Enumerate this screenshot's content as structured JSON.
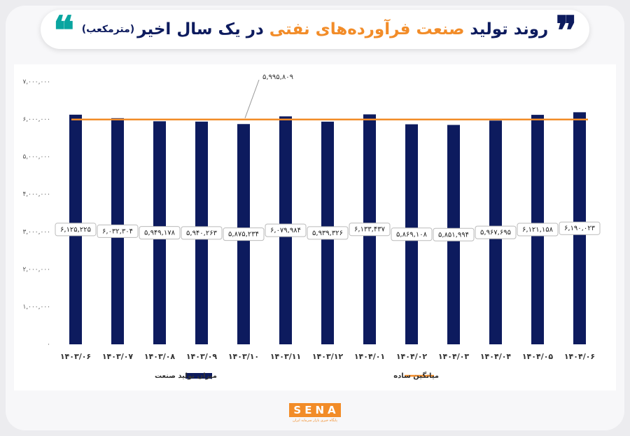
{
  "chart_data": {
    "type": "bar",
    "title_segments": [
      {
        "text": "روند تولید",
        "color": "#0d1b5e"
      },
      {
        "text": "صنعت فرآورده‌های نفتی",
        "color": "#f28c28"
      },
      {
        "text": "در یک سال اخیر",
        "color": "#0d1b5e"
      },
      {
        "text": "(مترمکعب)",
        "color": "#0d1b5e"
      }
    ],
    "categories": [
      "۱۴۰۳/۰۶",
      "۱۴۰۳/۰۷",
      "۱۴۰۳/۰۸",
      "۱۴۰۳/۰۹",
      "۱۴۰۳/۱۰",
      "۱۴۰۳/۱۱",
      "۱۴۰۳/۱۲",
      "۱۴۰۴/۰۱",
      "۱۴۰۴/۰۲",
      "۱۴۰۴/۰۳",
      "۱۴۰۴/۰۴",
      "۱۴۰۴/۰۵",
      "۱۴۰۴/۰۶"
    ],
    "series": [
      {
        "name": "میزان تولید صنعت",
        "color": "#0d1b5e",
        "values": [
          6125225,
          6032304,
          5949178,
          5940263,
          5875234,
          6079984,
          5939326,
          6133437,
          5869108,
          5851994,
          5967695,
          6121158,
          6190023
        ],
        "value_labels": [
          "۶,۱۲۵,۲۲۵",
          "۶,۰۳۲,۳۰۴",
          "۵,۹۴۹,۱۷۸",
          "۵,۹۴۰,۲۶۳",
          "۵,۸۷۵,۲۳۴",
          "۶,۰۷۹,۹۸۴",
          "۵,۹۳۹,۳۲۶",
          "۶,۱۳۳,۴۳۷",
          "۵,۸۶۹,۱۰۸",
          "۵,۸۵۱,۹۹۴",
          "۵,۹۶۷,۶۹۵",
          "۶,۱۲۱,۱۵۸",
          "۶,۱۹۰,۰۲۳"
        ]
      }
    ],
    "average": {
      "name": "میانگین ساده",
      "color": "#f28c28",
      "value": 5995809,
      "value_label": "۵,۹۹۵,۸۰۹"
    },
    "ylim": [
      0,
      7000000
    ],
    "yticks": [
      {
        "value": 0,
        "label": "۰"
      },
      {
        "value": 1000000,
        "label": "۱,۰۰۰,۰۰۰"
      },
      {
        "value": 2000000,
        "label": "۲,۰۰۰,۰۰۰"
      },
      {
        "value": 3000000,
        "label": "۳,۰۰۰,۰۰۰"
      },
      {
        "value": 4000000,
        "label": "۴,۰۰۰,۰۰۰"
      },
      {
        "value": 5000000,
        "label": "۵,۰۰۰,۰۰۰"
      },
      {
        "value": 6000000,
        "label": "۶,۰۰۰,۰۰۰"
      },
      {
        "value": 7000000,
        "label": "۷,۰۰۰,۰۰۰"
      }
    ],
    "grid": false,
    "legend": "bottom",
    "logo": "SENA",
    "logo_caption": "پایگاه خبری بازار سرمایه ایران"
  }
}
